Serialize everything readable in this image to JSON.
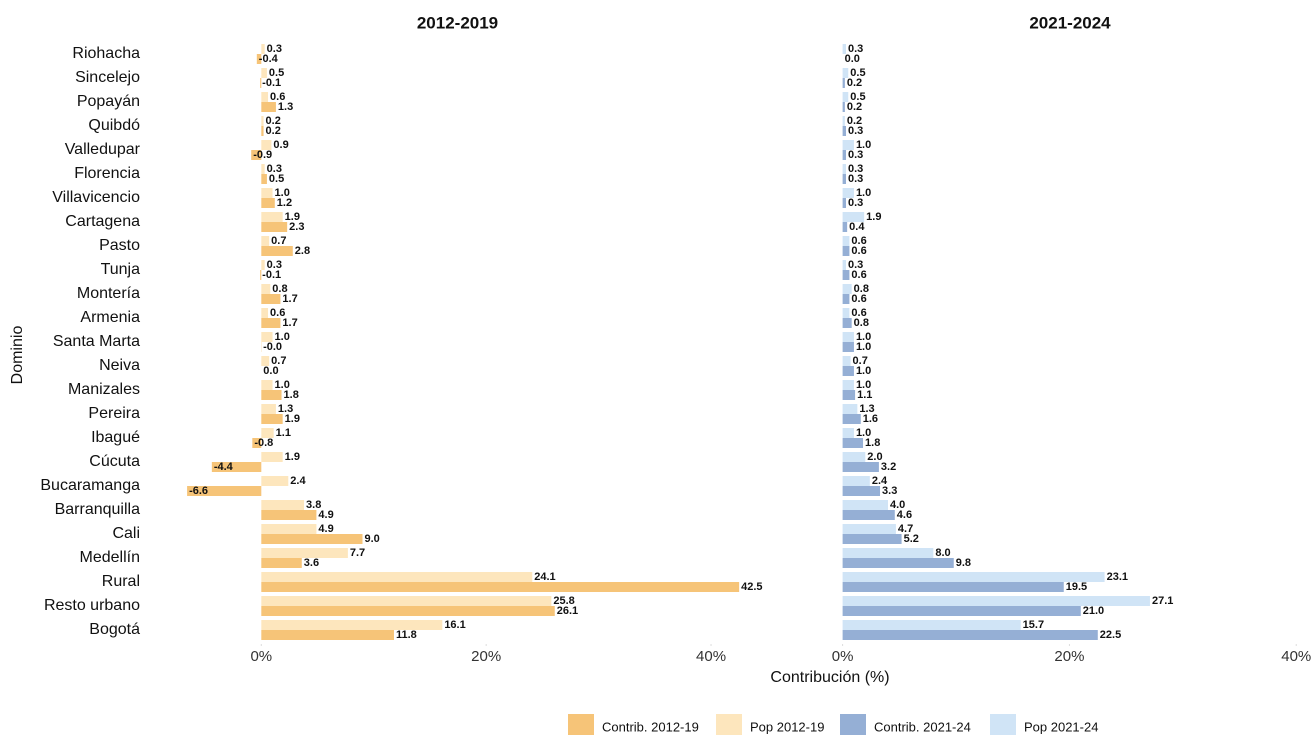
{
  "chart_data": {
    "type": "bar",
    "orientation": "horizontal",
    "x_label": "Contribución (%)",
    "y_label": "Dominio",
    "categories": [
      "Riohacha",
      "Sincelejo",
      "Popayán",
      "Quibdó",
      "Valledupar",
      "Florencia",
      "Villavicencio",
      "Cartagena",
      "Pasto",
      "Tunja",
      "Montería",
      "Armenia",
      "Santa Marta",
      "Neiva",
      "Manizales",
      "Pereira",
      "Ibagué",
      "Cúcuta",
      "Bucaramanga",
      "Barranquilla",
      "Cali",
      "Medellín",
      "Rural",
      "Resto urbano",
      "Bogotá"
    ],
    "panels": [
      {
        "title": "2012-2019",
        "xlim": [
          -9.9,
          44.8
        ],
        "xticks": [
          {
            "value": 0,
            "label": "0%"
          },
          {
            "value": 20,
            "label": "20%"
          },
          {
            "value": 40,
            "label": "40%"
          }
        ],
        "series": [
          {
            "name": "Contrib. 2012-19",
            "color": "#f6c478",
            "values": [
              -0.4,
              -0.1,
              1.3,
              0.2,
              -0.9,
              0.5,
              1.2,
              2.3,
              2.8,
              -0.1,
              1.7,
              1.7,
              -0.02,
              0.0,
              1.8,
              1.9,
              -0.8,
              -4.4,
              -6.6,
              4.9,
              9.0,
              3.6,
              42.5,
              26.1,
              11.8
            ],
            "value_labels": [
              "-0.4",
              "-0.1",
              "1.3",
              "0.2",
              "-0.9",
              "0.5",
              "1.2",
              "2.3",
              "2.8",
              "-0.1",
              "1.7",
              "1.7",
              "-0.0",
              "0.0",
              "1.8",
              "1.9",
              "-0.8",
              "-4.4",
              "-6.6",
              "4.9",
              "9.0",
              "3.6",
              "42.5",
              "26.1",
              "11.8"
            ]
          },
          {
            "name": "Pop 2012-19",
            "color": "#fde6bd",
            "values": [
              0.3,
              0.5,
              0.6,
              0.2,
              0.9,
              0.3,
              1.0,
              1.9,
              0.7,
              0.3,
              0.8,
              0.6,
              1.0,
              0.7,
              1.0,
              1.3,
              1.1,
              1.9,
              2.4,
              3.8,
              4.9,
              7.7,
              24.1,
              25.8,
              16.1
            ],
            "value_labels": [
              "0.3",
              "0.5",
              "0.6",
              "0.2",
              "0.9",
              "0.3",
              "1.0",
              "1.9",
              "0.7",
              "0.3",
              "0.8",
              "0.6",
              "1.0",
              "0.7",
              "1.0",
              "1.3",
              "1.1",
              "1.9",
              "2.4",
              "3.8",
              "4.9",
              "7.7",
              "24.1",
              "25.8",
              "16.1"
            ]
          }
        ]
      },
      {
        "title": "2021-2024",
        "xlim": [
          -1.2,
          41.3
        ],
        "xticks": [
          {
            "value": 0,
            "label": "0%"
          },
          {
            "value": 20,
            "label": "20%"
          },
          {
            "value": 40,
            "label": "40%"
          }
        ],
        "series": [
          {
            "name": "Contrib. 2021-24",
            "color": "#95afd5",
            "values": [
              0.0,
              0.2,
              0.2,
              0.3,
              0.3,
              0.3,
              0.3,
              0.4,
              0.6,
              0.6,
              0.6,
              0.8,
              1.0,
              1.0,
              1.1,
              1.6,
              1.8,
              3.2,
              3.3,
              4.6,
              5.2,
              9.8,
              19.5,
              21.0,
              22.5
            ],
            "value_labels": [
              "0.0",
              "0.2",
              "0.2",
              "0.3",
              "0.3",
              "0.3",
              "0.3",
              "0.4",
              "0.6",
              "0.6",
              "0.6",
              "0.8",
              "1.0",
              "1.0",
              "1.1",
              "1.6",
              "1.8",
              "3.2",
              "3.3",
              "4.6",
              "5.2",
              "9.8",
              "19.5",
              "21.0",
              "22.5"
            ]
          },
          {
            "name": "Pop 2021-24",
            "color": "#d0e4f6",
            "values": [
              0.3,
              0.5,
              0.5,
              0.2,
              1.0,
              0.3,
              1.0,
              1.9,
              0.6,
              0.3,
              0.8,
              0.6,
              1.0,
              0.7,
              1.0,
              1.3,
              1.0,
              2.0,
              2.4,
              4.0,
              4.7,
              8.0,
              23.1,
              27.1,
              15.7
            ],
            "value_labels": [
              "0.3",
              "0.5",
              "0.5",
              "0.2",
              "1.0",
              "0.3",
              "1.0",
              "1.9",
              "0.6",
              "0.3",
              "0.8",
              "0.6",
              "1.0",
              "0.7",
              "1.0",
              "1.3",
              "1.0",
              "2.0",
              "2.4",
              "4.0",
              "4.7",
              "8.0",
              "23.1",
              "27.1",
              "15.7"
            ]
          }
        ]
      }
    ]
  }
}
